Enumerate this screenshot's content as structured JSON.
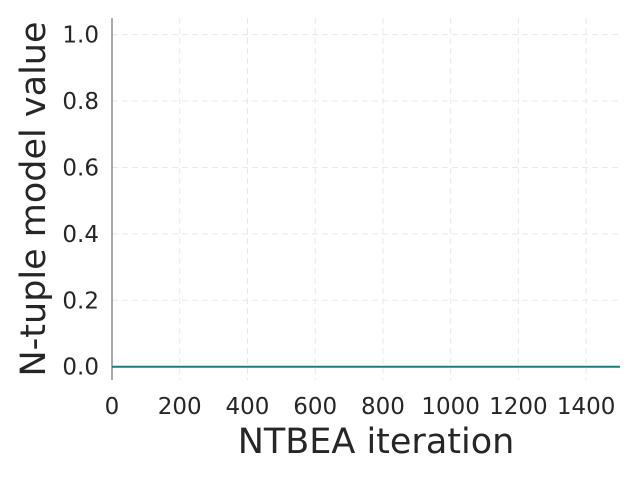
{
  "chart_data": {
    "type": "line",
    "title": "",
    "xlabel": "NTBEA iteration",
    "ylabel": "N-tuple model value",
    "xlim": [
      0,
      1500
    ],
    "ylim": [
      -0.04,
      1.05
    ],
    "xticks": [
      0,
      200,
      400,
      600,
      800,
      1000,
      1200,
      1400
    ],
    "xtick_labels": [
      "0",
      "200",
      "400",
      "600",
      "800",
      "1000",
      "1200",
      "1400"
    ],
    "yticks": [
      0.0,
      0.2,
      0.4,
      0.6,
      0.8,
      1.0
    ],
    "ytick_labels": [
      "0.0",
      "0.2",
      "0.4",
      "0.6",
      "0.8",
      "1.0"
    ],
    "grid": true,
    "series": [
      {
        "color": "#1a7f7a",
        "x": [
          0,
          1500
        ],
        "y": [
          0.0,
          0.0
        ]
      }
    ]
  }
}
